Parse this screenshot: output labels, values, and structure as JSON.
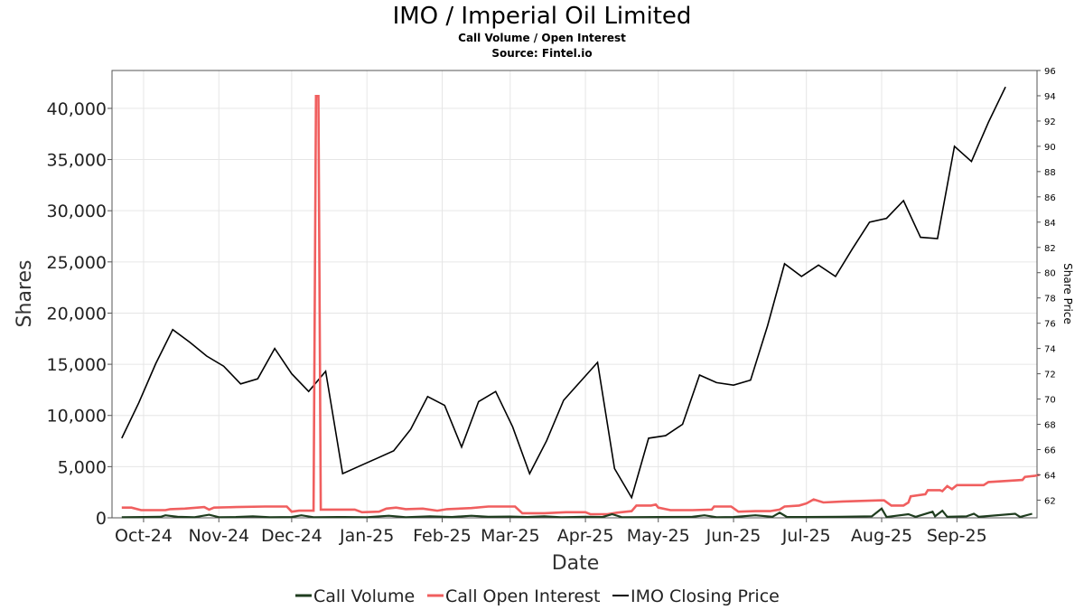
{
  "chart_data": {
    "type": "line",
    "title": "IMO / Imperial Oil Limited",
    "subtitle": "Call Volume / Open Interest",
    "source": "Source: Fintel.io",
    "xlabel": "Date",
    "ylabel": "Shares",
    "ylabel_right": "Share Price",
    "x_range": [
      "2024-09-18",
      "2025-10-04"
    ],
    "ylim": [
      0,
      43700
    ],
    "ylim_right": [
      60.6,
      96
    ],
    "x_ticks": [
      {
        "date": "2024-10-01",
        "label": "Oct-24"
      },
      {
        "date": "2024-11-01",
        "label": "Nov-24"
      },
      {
        "date": "2024-12-01",
        "label": "Dec-24"
      },
      {
        "date": "2025-01-01",
        "label": "Jan-25"
      },
      {
        "date": "2025-02-01",
        "label": "Feb-25"
      },
      {
        "date": "2025-03-01",
        "label": "Mar-25"
      },
      {
        "date": "2025-04-01",
        "label": "Apr-25"
      },
      {
        "date": "2025-05-01",
        "label": "May-25"
      },
      {
        "date": "2025-06-01",
        "label": "Jun-25"
      },
      {
        "date": "2025-07-01",
        "label": "Jul-25"
      },
      {
        "date": "2025-08-01",
        "label": "Aug-25"
      },
      {
        "date": "2025-09-01",
        "label": "Sep-25"
      }
    ],
    "y_ticks": [
      {
        "value": 0,
        "label": "0"
      },
      {
        "value": 5000,
        "label": "5,000"
      },
      {
        "value": 10000,
        "label": "10,000"
      },
      {
        "value": 15000,
        "label": "15,000"
      },
      {
        "value": 20000,
        "label": "20,000"
      },
      {
        "value": 25000,
        "label": "25,000"
      },
      {
        "value": 30000,
        "label": "30,000"
      },
      {
        "value": 35000,
        "label": "35,000"
      },
      {
        "value": 40000,
        "label": "40,000"
      }
    ],
    "y_right_ticks": [
      {
        "value": 62,
        "label": "62"
      },
      {
        "value": 64,
        "label": "64"
      },
      {
        "value": 66,
        "label": "66"
      },
      {
        "value": 68,
        "label": "68"
      },
      {
        "value": 70,
        "label": "70"
      },
      {
        "value": 72,
        "label": "72"
      },
      {
        "value": 74,
        "label": "74"
      },
      {
        "value": 76,
        "label": "76"
      },
      {
        "value": 78,
        "label": "78"
      },
      {
        "value": 80,
        "label": "80"
      },
      {
        "value": 82,
        "label": "82"
      },
      {
        "value": 84,
        "label": "84"
      },
      {
        "value": 86,
        "label": "86"
      },
      {
        "value": 88,
        "label": "88"
      },
      {
        "value": 90,
        "label": "90"
      },
      {
        "value": 92,
        "label": "92"
      },
      {
        "value": 94,
        "label": "94"
      },
      {
        "value": 96,
        "label": "96"
      }
    ],
    "grid": true,
    "legend_position": "bottom",
    "series": [
      {
        "name": "Call Volume",
        "color": "#1f3d1f",
        "axis": "left",
        "points": [
          [
            "2024-09-22",
            50
          ],
          [
            "2024-10-01",
            80
          ],
          [
            "2024-10-08",
            100
          ],
          [
            "2024-10-10",
            250
          ],
          [
            "2024-10-15",
            100
          ],
          [
            "2024-10-22",
            60
          ],
          [
            "2024-10-28",
            300
          ],
          [
            "2024-11-01",
            60
          ],
          [
            "2024-11-08",
            80
          ],
          [
            "2024-11-15",
            150
          ],
          [
            "2024-11-22",
            50
          ],
          [
            "2024-12-01",
            80
          ],
          [
            "2024-12-05",
            250
          ],
          [
            "2024-12-10",
            60
          ],
          [
            "2024-12-20",
            80
          ],
          [
            "2025-01-01",
            60
          ],
          [
            "2025-01-10",
            200
          ],
          [
            "2025-01-17",
            60
          ],
          [
            "2025-01-27",
            150
          ],
          [
            "2025-02-05",
            80
          ],
          [
            "2025-02-13",
            200
          ],
          [
            "2025-02-20",
            100
          ],
          [
            "2025-03-01",
            120
          ],
          [
            "2025-03-08",
            80
          ],
          [
            "2025-03-15",
            150
          ],
          [
            "2025-03-22",
            60
          ],
          [
            "2025-04-01",
            100
          ],
          [
            "2025-04-08",
            80
          ],
          [
            "2025-04-12",
            350
          ],
          [
            "2025-04-16",
            60
          ],
          [
            "2025-05-01",
            80
          ],
          [
            "2025-05-15",
            100
          ],
          [
            "2025-05-20",
            250
          ],
          [
            "2025-05-25",
            60
          ],
          [
            "2025-06-01",
            80
          ],
          [
            "2025-06-10",
            250
          ],
          [
            "2025-06-17",
            100
          ],
          [
            "2025-06-20",
            500
          ],
          [
            "2025-06-23",
            80
          ],
          [
            "2025-07-01",
            80
          ],
          [
            "2025-07-15",
            100
          ],
          [
            "2025-07-28",
            150
          ],
          [
            "2025-08-01",
            900
          ],
          [
            "2025-08-03",
            80
          ],
          [
            "2025-08-12",
            350
          ],
          [
            "2025-08-15",
            100
          ],
          [
            "2025-08-22",
            600
          ],
          [
            "2025-08-23",
            150
          ],
          [
            "2025-08-26",
            700
          ],
          [
            "2025-08-28",
            100
          ],
          [
            "2025-09-05",
            150
          ],
          [
            "2025-09-08",
            400
          ],
          [
            "2025-09-10",
            100
          ],
          [
            "2025-09-25",
            400
          ],
          [
            "2025-09-27",
            80
          ],
          [
            "2025-10-02",
            400
          ]
        ]
      },
      {
        "name": "Call Open Interest",
        "color": "#f05f5f",
        "axis": "left",
        "points": [
          [
            "2024-09-22",
            1000
          ],
          [
            "2024-09-26",
            1000
          ],
          [
            "2024-09-30",
            750
          ],
          [
            "2024-10-10",
            750
          ],
          [
            "2024-10-12",
            850
          ],
          [
            "2024-10-18",
            900
          ],
          [
            "2024-10-26",
            1050
          ],
          [
            "2024-10-28",
            800
          ],
          [
            "2024-10-30",
            1000
          ],
          [
            "2024-11-08",
            1050
          ],
          [
            "2024-11-20",
            1100
          ],
          [
            "2024-11-29",
            1100
          ],
          [
            "2024-12-01",
            600
          ],
          [
            "2024-12-04",
            700
          ],
          [
            "2024-12-10",
            700
          ],
          [
            "2024-12-11",
            41200
          ],
          [
            "2024-12-12",
            41200
          ],
          [
            "2024-12-13",
            800
          ],
          [
            "2024-12-27",
            800
          ],
          [
            "2024-12-30",
            550
          ],
          [
            "2025-01-06",
            600
          ],
          [
            "2025-01-09",
            900
          ],
          [
            "2025-01-13",
            1000
          ],
          [
            "2025-01-17",
            850
          ],
          [
            "2025-01-24",
            900
          ],
          [
            "2025-01-30",
            700
          ],
          [
            "2025-02-03",
            850
          ],
          [
            "2025-02-13",
            950
          ],
          [
            "2025-02-20",
            1100
          ],
          [
            "2025-03-03",
            1100
          ],
          [
            "2025-03-06",
            450
          ],
          [
            "2025-03-15",
            450
          ],
          [
            "2025-03-24",
            550
          ],
          [
            "2025-04-01",
            550
          ],
          [
            "2025-04-03",
            350
          ],
          [
            "2025-04-10",
            350
          ],
          [
            "2025-04-14",
            500
          ],
          [
            "2025-04-20",
            650
          ],
          [
            "2025-04-22",
            1200
          ],
          [
            "2025-04-28",
            1200
          ],
          [
            "2025-04-30",
            1300
          ],
          [
            "2025-05-01",
            1000
          ],
          [
            "2025-05-06",
            750
          ],
          [
            "2025-05-15",
            750
          ],
          [
            "2025-05-23",
            800
          ],
          [
            "2025-05-24",
            1100
          ],
          [
            "2025-05-31",
            1100
          ],
          [
            "2025-06-03",
            600
          ],
          [
            "2025-06-10",
            650
          ],
          [
            "2025-06-16",
            650
          ],
          [
            "2025-06-20",
            800
          ],
          [
            "2025-06-22",
            1100
          ],
          [
            "2025-06-28",
            1200
          ],
          [
            "2025-07-01",
            1400
          ],
          [
            "2025-07-04",
            1800
          ],
          [
            "2025-07-08",
            1500
          ],
          [
            "2025-07-16",
            1600
          ],
          [
            "2025-07-31",
            1700
          ],
          [
            "2025-08-02",
            1700
          ],
          [
            "2025-08-05",
            1200
          ],
          [
            "2025-08-10",
            1200
          ],
          [
            "2025-08-12",
            1500
          ],
          [
            "2025-08-13",
            2100
          ],
          [
            "2025-08-19",
            2300
          ],
          [
            "2025-08-20",
            2700
          ],
          [
            "2025-08-25",
            2700
          ],
          [
            "2025-08-26",
            2600
          ],
          [
            "2025-08-28",
            3100
          ],
          [
            "2025-08-30",
            2800
          ],
          [
            "2025-09-01",
            3200
          ],
          [
            "2025-09-12",
            3200
          ],
          [
            "2025-09-14",
            3500
          ],
          [
            "2025-09-28",
            3700
          ],
          [
            "2025-09-29",
            4000
          ],
          [
            "2025-10-03",
            4100
          ],
          [
            "2025-10-05",
            4200
          ]
        ]
      },
      {
        "name": "IMO Closing Price",
        "color": "#000000",
        "axis": "right",
        "points": [
          [
            "2024-09-22",
            66.9
          ],
          [
            "2024-09-29",
            69.7
          ],
          [
            "2024-10-06",
            72.8
          ],
          [
            "2024-10-13",
            75.5
          ],
          [
            "2024-10-20",
            74.5
          ],
          [
            "2024-10-27",
            73.4
          ],
          [
            "2024-11-03",
            72.6
          ],
          [
            "2024-11-10",
            71.2
          ],
          [
            "2024-11-17",
            71.6
          ],
          [
            "2024-11-24",
            74.0
          ],
          [
            "2024-12-01",
            72.0
          ],
          [
            "2024-12-08",
            70.6
          ],
          [
            "2024-12-15",
            72.2
          ],
          [
            "2024-12-22",
            64.1
          ],
          [
            "2024-12-29",
            64.7
          ],
          [
            "2025-01-05",
            65.3
          ],
          [
            "2025-01-12",
            65.9
          ],
          [
            "2025-01-19",
            67.6
          ],
          [
            "2025-01-26",
            70.2
          ],
          [
            "2025-02-02",
            69.5
          ],
          [
            "2025-02-09",
            66.2
          ],
          [
            "2025-02-16",
            69.8
          ],
          [
            "2025-02-23",
            70.6
          ],
          [
            "2025-03-02",
            67.8
          ],
          [
            "2025-03-09",
            64.1
          ],
          [
            "2025-03-16",
            66.7
          ],
          [
            "2025-03-23",
            69.9
          ],
          [
            "2025-03-30",
            71.4
          ],
          [
            "2025-04-06",
            72.9
          ],
          [
            "2025-04-13",
            64.5
          ],
          [
            "2025-04-20",
            62.2
          ],
          [
            "2025-04-27",
            66.9
          ],
          [
            "2025-05-04",
            67.1
          ],
          [
            "2025-05-11",
            68.0
          ],
          [
            "2025-05-18",
            71.9
          ],
          [
            "2025-05-25",
            71.3
          ],
          [
            "2025-06-01",
            71.1
          ],
          [
            "2025-06-08",
            71.5
          ],
          [
            "2025-06-15",
            75.8
          ],
          [
            "2025-06-22",
            80.7
          ],
          [
            "2025-06-29",
            79.7
          ],
          [
            "2025-07-06",
            80.6
          ],
          [
            "2025-07-13",
            79.7
          ],
          [
            "2025-07-20",
            81.9
          ],
          [
            "2025-07-27",
            84.0
          ],
          [
            "2025-08-03",
            84.3
          ],
          [
            "2025-08-10",
            85.7
          ],
          [
            "2025-08-17",
            82.8
          ],
          [
            "2025-08-24",
            82.7
          ],
          [
            "2025-08-31",
            90.0
          ],
          [
            "2025-09-07",
            88.8
          ],
          [
            "2025-09-14",
            91.9
          ],
          [
            "2025-09-21",
            94.7
          ]
        ]
      }
    ]
  }
}
